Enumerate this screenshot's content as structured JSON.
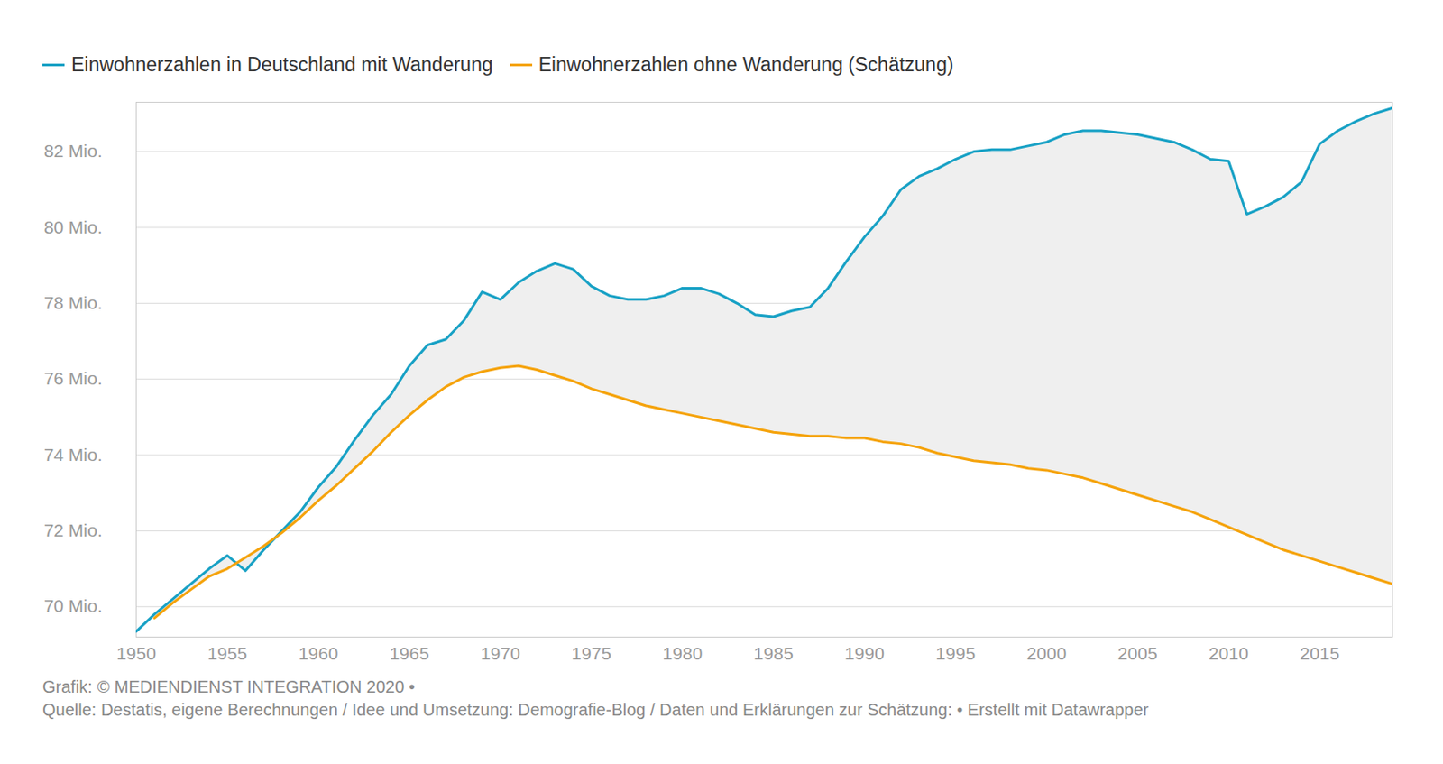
{
  "chart_data": {
    "type": "line",
    "x": [
      1950,
      1951,
      1952,
      1953,
      1954,
      1955,
      1956,
      1957,
      1958,
      1959,
      1960,
      1961,
      1962,
      1963,
      1964,
      1965,
      1966,
      1967,
      1968,
      1969,
      1970,
      1971,
      1972,
      1973,
      1974,
      1975,
      1976,
      1977,
      1978,
      1979,
      1980,
      1981,
      1982,
      1983,
      1984,
      1985,
      1986,
      1987,
      1988,
      1989,
      1990,
      1991,
      1992,
      1993,
      1994,
      1995,
      1996,
      1997,
      1998,
      1999,
      2000,
      2001,
      2002,
      2003,
      2004,
      2005,
      2006,
      2007,
      2008,
      2009,
      2010,
      2011,
      2012,
      2013,
      2014,
      2015,
      2016,
      2017,
      2018,
      2019
    ],
    "series": [
      {
        "name": "Einwohnerzahlen in Deutschland mit Wanderung",
        "color": "#18a1c5",
        "values": [
          69.35,
          69.8,
          70.2,
          70.6,
          71.0,
          71.35,
          70.95,
          71.5,
          72.0,
          72.5,
          73.15,
          73.7,
          74.4,
          75.05,
          75.6,
          76.35,
          76.9,
          77.05,
          77.55,
          78.3,
          78.1,
          78.55,
          78.85,
          79.05,
          78.9,
          78.45,
          78.2,
          78.1,
          78.1,
          78.2,
          78.4,
          78.4,
          78.25,
          78.0,
          77.7,
          77.65,
          77.8,
          77.9,
          78.4,
          79.1,
          79.75,
          80.3,
          81.0,
          81.35,
          81.55,
          81.8,
          82.0,
          82.05,
          82.05,
          82.15,
          82.25,
          82.45,
          82.55,
          82.55,
          82.5,
          82.45,
          82.35,
          82.25,
          82.05,
          81.8,
          81.75,
          80.35,
          80.55,
          80.8,
          81.2,
          82.2,
          82.55,
          82.8,
          83.0,
          83.15
        ]
      },
      {
        "name": "Einwohnerzahlen ohne Wanderung (Schätzung)",
        "color": "#f5a30c",
        "values": [
          null,
          69.7,
          70.1,
          70.45,
          70.8,
          71.0,
          71.3,
          71.6,
          71.95,
          72.35,
          72.8,
          73.2,
          73.65,
          74.1,
          74.6,
          75.05,
          75.45,
          75.8,
          76.05,
          76.2,
          76.3,
          76.35,
          76.25,
          76.1,
          75.95,
          75.75,
          75.6,
          75.45,
          75.3,
          75.2,
          75.1,
          75.0,
          74.9,
          74.8,
          74.7,
          74.6,
          74.55,
          74.5,
          74.5,
          74.45,
          74.45,
          74.35,
          74.3,
          74.2,
          74.05,
          73.95,
          73.85,
          73.8,
          73.75,
          73.65,
          73.6,
          73.5,
          73.4,
          73.25,
          73.1,
          72.95,
          72.8,
          72.65,
          72.5,
          72.3,
          72.1,
          71.9,
          71.7,
          71.5,
          71.35,
          71.2,
          71.05,
          70.9,
          70.75,
          70.6
        ]
      }
    ],
    "xlim": [
      1950,
      2019
    ],
    "xticks": [
      1950,
      1955,
      1960,
      1965,
      1970,
      1975,
      1980,
      1985,
      1990,
      1995,
      2000,
      2005,
      2010,
      2015
    ],
    "ylim": [
      69.2,
      83.3
    ],
    "yticks": [
      {
        "value": 70,
        "label": "70 Mio."
      },
      {
        "value": 72,
        "label": "72 Mio."
      },
      {
        "value": 74,
        "label": "74 Mio."
      },
      {
        "value": 76,
        "label": "76 Mio."
      },
      {
        "value": 78,
        "label": "78 Mio."
      },
      {
        "value": 80,
        "label": "80 Mio."
      },
      {
        "value": 82,
        "label": "82 Mio."
      }
    ],
    "grid": true,
    "legend": "top",
    "caption": [
      "Grafik: © MEDIENDIENST INTEGRATION 2020 •",
      "Quelle: Destatis, eigene Berechnungen / Idee und Umsetzung: Demografie-Blog / Daten und Erklärungen zur Schätzung: • Erstellt mit Datawrapper"
    ]
  }
}
